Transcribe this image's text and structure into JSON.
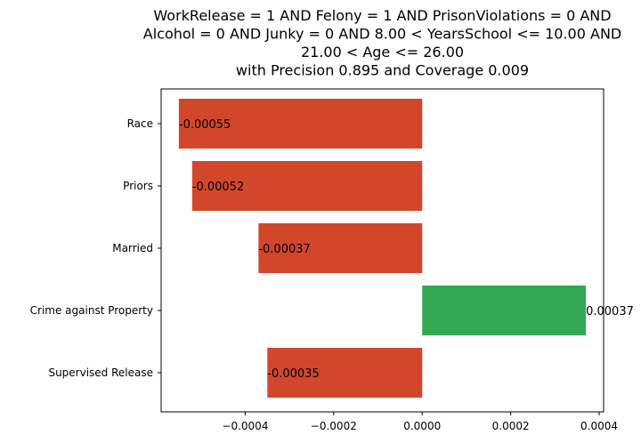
{
  "chart_data": {
    "type": "bar",
    "orientation": "horizontal",
    "title_lines": [
      "WorkRelease = 1 AND Felony = 1 AND PrisonViolations = 0 AND",
      "Alcohol = 0 AND Junky = 0 AND 8.00 < YearsSchool <= 10.00 AND",
      "21.00 < Age <= 26.00",
      "with Precision 0.895 and Coverage 0.009"
    ],
    "categories": [
      "Race",
      "Priors",
      "Married",
      "Crime against Property",
      "Supervised Release"
    ],
    "values": [
      -0.00055,
      -0.00052,
      -0.00037,
      0.00037,
      -0.00035
    ],
    "value_labels": [
      "-0.00055",
      "-0.00052",
      "-0.00037",
      "0.00037",
      "-0.00035"
    ],
    "xlim": [
      -0.00059,
      0.00041
    ],
    "xticks": [
      -0.0004,
      -0.0002,
      0.0,
      0.0002,
      0.0004
    ],
    "xtick_labels": [
      "−0.0004",
      "−0.0002",
      "0.0000",
      "0.0002",
      "0.0004"
    ],
    "xlabel": "",
    "ylabel": "",
    "grid": false,
    "colors": {
      "negative": "#d2472c",
      "positive": "#33a852"
    }
  }
}
